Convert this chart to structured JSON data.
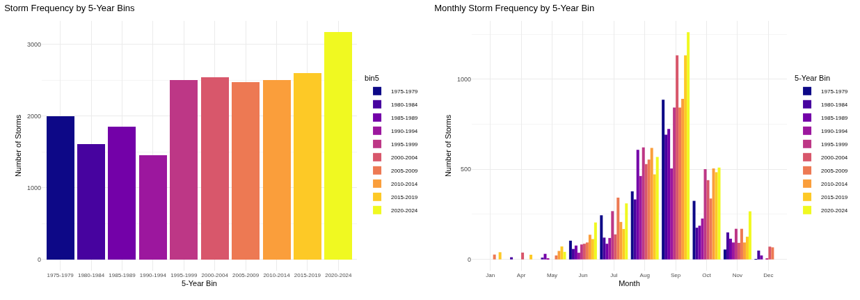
{
  "chart_data": [
    {
      "type": "bar",
      "title": "Storm Frequency by 5-Year Bins",
      "xlabel": "5-Year Bin",
      "ylabel": "Number of Storms",
      "legend_title": "bin5",
      "categories": [
        "1975-1979",
        "1980-1984",
        "1985-1989",
        "1990-1994",
        "1995-1999",
        "2000-2004",
        "2005-2009",
        "2010-2014",
        "2015-2019",
        "2020-2024"
      ],
      "series": [
        {
          "name": "1975-1979",
          "color": "#0d0887",
          "values": [
            2000,
            null,
            null,
            null,
            null,
            null,
            null,
            null,
            null,
            null
          ]
        },
        {
          "name": "1980-1984",
          "color": "#47039f",
          "values": [
            null,
            1610,
            null,
            null,
            null,
            null,
            null,
            null,
            null,
            null
          ]
        },
        {
          "name": "1985-1989",
          "color": "#7301a8",
          "values": [
            null,
            null,
            1850,
            null,
            null,
            null,
            null,
            null,
            null,
            null
          ]
        },
        {
          "name": "1990-1994",
          "color": "#9c179e",
          "values": [
            null,
            null,
            null,
            1450,
            null,
            null,
            null,
            null,
            null,
            null
          ]
        },
        {
          "name": "1995-1999",
          "color": "#bd3786",
          "values": [
            null,
            null,
            null,
            null,
            2500,
            null,
            null,
            null,
            null,
            null
          ]
        },
        {
          "name": "2000-2004",
          "color": "#d8576b",
          "values": [
            null,
            null,
            null,
            null,
            null,
            2540,
            null,
            null,
            null,
            null
          ]
        },
        {
          "name": "2005-2009",
          "color": "#ed7953",
          "values": [
            null,
            null,
            null,
            null,
            null,
            null,
            2470,
            null,
            null,
            null
          ]
        },
        {
          "name": "2010-2014",
          "color": "#fa9e3b",
          "values": [
            null,
            null,
            null,
            null,
            null,
            null,
            null,
            2500,
            null,
            null
          ]
        },
        {
          "name": "2015-2019",
          "color": "#fdc926",
          "values": [
            null,
            null,
            null,
            null,
            null,
            null,
            null,
            null,
            2600,
            null
          ]
        },
        {
          "name": "2020-2024",
          "color": "#f0f921",
          "values": [
            null,
            null,
            null,
            null,
            null,
            null,
            null,
            null,
            null,
            3170
          ]
        }
      ],
      "stacked": true,
      "ylim": [
        -160,
        3330
      ],
      "yticks": [
        0,
        1000,
        2000,
        3000
      ],
      "grid": true,
      "legend": "right"
    },
    {
      "type": "bar",
      "title": "Monthly Storm Frequency by 5-Year Bin",
      "xlabel": "Month",
      "ylabel": "Number of Storms",
      "legend_title": "5-Year Bin",
      "categories": [
        "Jan",
        "Apr",
        "May",
        "Jun",
        "Jul",
        "Aug",
        "Sep",
        "Oct",
        "Nov",
        "Dec"
      ],
      "series": [
        {
          "name": "1975-1979",
          "color": "#0d0887",
          "values": [
            null,
            null,
            null,
            104,
            245,
            378,
            886,
            325,
            55,
            2
          ]
        },
        {
          "name": "1980-1984",
          "color": "#47039f",
          "values": [
            null,
            12,
            10,
            58,
            121,
            333,
            692,
            176,
            150,
            49
          ]
        },
        {
          "name": "1985-1989",
          "color": "#7301a8",
          "values": [
            null,
            null,
            31,
            77,
            87,
            608,
            724,
            187,
            115,
            22
          ]
        },
        {
          "name": "1990-1994",
          "color": "#9c179e",
          "values": [
            null,
            null,
            6,
            37,
            119,
            463,
            505,
            227,
            94,
            null
          ]
        },
        {
          "name": "1995-1999",
          "color": "#bd3786",
          "values": [
            null,
            null,
            null,
            83,
            268,
            622,
            843,
            501,
            170,
            5
          ]
        },
        {
          "name": "2000-2004",
          "color": "#d8576b",
          "values": [
            null,
            38,
            null,
            87,
            139,
            529,
            1133,
            440,
            92,
            71
          ]
        },
        {
          "name": "2005-2009",
          "color": "#ed7953",
          "values": [
            27,
            null,
            22,
            94,
            343,
            554,
            843,
            338,
            170,
            67
          ]
        },
        {
          "name": "2010-2014",
          "color": "#fa9e3b",
          "values": [
            null,
            null,
            47,
            137,
            208,
            619,
            891,
            505,
            94,
            null
          ]
        },
        {
          "name": "2015-2019",
          "color": "#fdc926",
          "values": [
            40,
            26,
            72,
            113,
            169,
            472,
            1133,
            484,
            126,
            null
          ]
        },
        {
          "name": "2020-2024",
          "color": "#f0f921",
          "values": [
            null,
            null,
            42,
            205,
            311,
            569,
            1261,
            510,
            267,
            null
          ]
        }
      ],
      "ylim": [
        -63,
        1324
      ],
      "yticks": [
        0,
        500,
        1000
      ],
      "grid": true,
      "legend": "right"
    }
  ]
}
